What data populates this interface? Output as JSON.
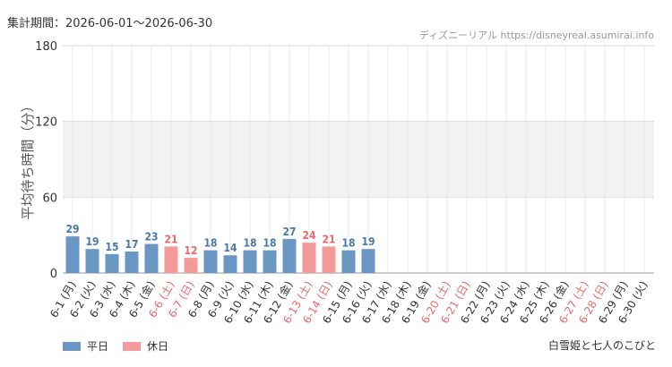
{
  "header": {
    "period": "集計期間：2026-06-01～2026-06-30",
    "site": "ディズニーリアル https://disneyreal.asumirai.info"
  },
  "footer": {
    "attraction": "白雪姫と七人のこびと"
  },
  "chart_data": {
    "type": "bar",
    "ylabel": "平均待ち時間（分）",
    "xlabel": "",
    "ylim": [
      0,
      180
    ],
    "yticks": [
      0,
      60,
      120,
      180
    ],
    "grid": true,
    "legend_position": "bottom-left",
    "colors": {
      "weekday": "#6b97c5",
      "holiday": "#f59a9a",
      "weekday_label": "#4a78a8",
      "holiday_label": "#e86a6a",
      "tick_label": "#333333"
    },
    "series": [
      {
        "name": "平日",
        "key": "weekday"
      },
      {
        "name": "休日",
        "key": "holiday"
      }
    ],
    "categories": [
      "6-1 (月)",
      "6-2 (火)",
      "6-3 (水)",
      "6-4 (木)",
      "6-5 (金)",
      "6-6 (土)",
      "6-7 (日)",
      "6-8 (月)",
      "6-9 (火)",
      "6-10 (水)",
      "6-11 (木)",
      "6-12 (金)",
      "6-13 (土)",
      "6-14 (日)",
      "6-15 (月)",
      "6-16 (火)",
      "6-17 (水)",
      "6-18 (木)",
      "6-19 (金)",
      "6-20 (土)",
      "6-21 (日)",
      "6-22 (月)",
      "6-23 (火)",
      "6-24 (水)",
      "6-25 (木)",
      "6-26 (金)",
      "6-27 (土)",
      "6-28 (日)",
      "6-29 (月)",
      "6-30 (火)"
    ],
    "day_type": [
      "weekday",
      "weekday",
      "weekday",
      "weekday",
      "weekday",
      "holiday",
      "holiday",
      "weekday",
      "weekday",
      "weekday",
      "weekday",
      "weekday",
      "holiday",
      "holiday",
      "weekday",
      "weekday",
      "weekday",
      "weekday",
      "weekday",
      "holiday",
      "holiday",
      "weekday",
      "weekday",
      "weekday",
      "weekday",
      "weekday",
      "holiday",
      "holiday",
      "weekday",
      "weekday"
    ],
    "values": [
      29,
      19,
      15,
      17,
      23,
      21,
      12,
      18,
      14,
      18,
      18,
      27,
      24,
      21,
      18,
      19,
      null,
      null,
      null,
      null,
      null,
      null,
      null,
      null,
      null,
      null,
      null,
      null,
      null,
      null
    ]
  }
}
